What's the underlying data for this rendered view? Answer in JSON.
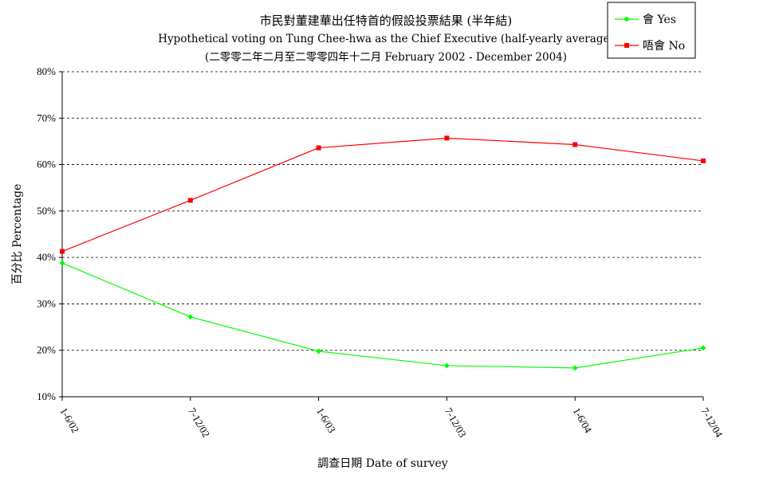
{
  "chart_data": {
    "type": "line",
    "title": "市民對董建華出任特首的假設投票結果 (半年結)",
    "subtitle": "Hypothetical voting on Tung Chee-hwa as the Chief Executive (half-yearly average)",
    "subtitle2": "(二零零二年二月至二零零四年十二月 February 2002 - December 2004)",
    "xlabel": "調查日期 Date of survey",
    "ylabel": "百分比 Percentage",
    "ylim": [
      10,
      80
    ],
    "yticks": [
      10,
      20,
      30,
      40,
      50,
      60,
      70,
      80
    ],
    "ytick_labels": [
      "10%",
      "20%",
      "30%",
      "40%",
      "50%",
      "60%",
      "70%",
      "80%"
    ],
    "categories": [
      "1-6/02",
      "7-12/02",
      "1-6/03",
      "7-12/03",
      "1-6/04",
      "7-12/04"
    ],
    "grid": true,
    "legend_position": "top-right",
    "series": [
      {
        "name": "會 Yes",
        "color": "#00ff00",
        "marker": "diamond",
        "values": [
          38.8,
          27.2,
          19.8,
          16.7,
          16.2,
          20.5
        ]
      },
      {
        "name": "唔會 No",
        "color": "#ff0000",
        "marker": "square",
        "values": [
          41.3,
          52.3,
          63.6,
          65.7,
          64.3,
          60.8
        ]
      }
    ]
  }
}
